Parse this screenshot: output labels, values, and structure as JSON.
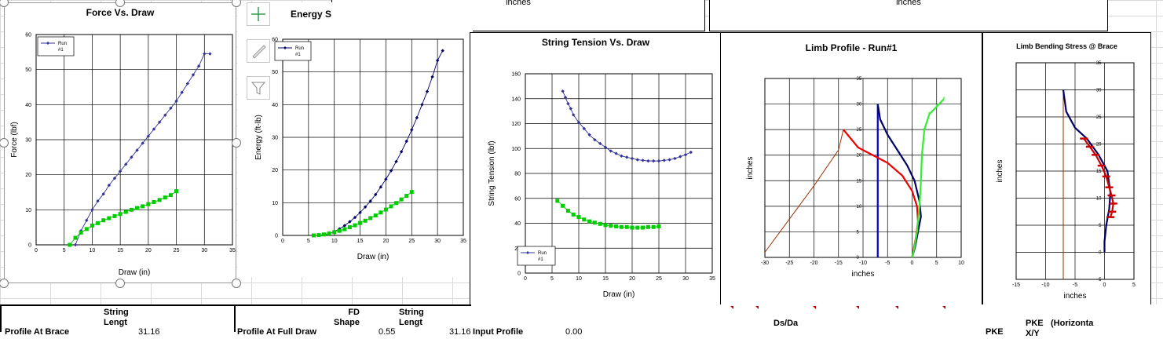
{
  "header_boxes": [
    {
      "text": "inches"
    },
    {
      "text": "inches"
    }
  ],
  "toolbar": {
    "add_icon": "plus-icon",
    "style_icon": "brush-icon",
    "filter_icon": "funnel-icon"
  },
  "bottom_cells": {
    "profile_at_brace": "Profile At Brace",
    "string_length_1": "String Lengt",
    "value_1": "31.16",
    "profile_at_full_draw": "Profile At Full Draw",
    "fd_shape": "FD Shape",
    "value_2": "0.55",
    "string_length_2": "String Lengt",
    "value_3": "31.16",
    "input_profile": "Input Profile",
    "value_4": "0.00",
    "ds_da": "Ds/Da",
    "pke": "PKE",
    "pke_xy": "PKE X/Y",
    "horizontal": "(Horizonta"
  },
  "chart_data": [
    {
      "type": "scatter",
      "title": "Force Vs. Draw",
      "xlabel": "Draw (in)",
      "ylabel": "Force (lbf)",
      "xlim": [
        0,
        35
      ],
      "ylim": [
        0,
        60
      ],
      "xticks": [
        0,
        5,
        10,
        15,
        20,
        25,
        30,
        35
      ],
      "yticks": [
        0,
        10,
        20,
        30,
        40,
        50,
        60
      ],
      "grid": true,
      "legend": "top-left",
      "series": [
        {
          "name": "Run #1",
          "color": "#333399",
          "marker": "diamond",
          "x": [
            7,
            8,
            9,
            10,
            11,
            12,
            13,
            14,
            15,
            16,
            17,
            18,
            19,
            20,
            21,
            22,
            23,
            24,
            25,
            26,
            27,
            28,
            29,
            30,
            31
          ],
          "y": [
            0,
            4,
            7,
            10,
            12.5,
            14.5,
            17,
            19,
            21,
            23,
            25,
            27,
            29,
            31,
            33,
            35,
            37,
            39,
            41,
            43.5,
            46,
            48.5,
            51,
            54.5,
            54.5
          ]
        },
        {
          "name": "",
          "color": "#00cc00",
          "marker": "square",
          "x": [
            6,
            7,
            8,
            9,
            10,
            11,
            12,
            13,
            14,
            15,
            16,
            17,
            18,
            19,
            20,
            21,
            22,
            23,
            24,
            25
          ],
          "y": [
            0,
            2,
            3.5,
            4.5,
            5.5,
            6.2,
            7,
            7.6,
            8.2,
            8.8,
            9.4,
            10,
            10.5,
            11,
            11.6,
            12.2,
            12.8,
            13.5,
            14.2,
            15.3
          ]
        }
      ]
    },
    {
      "type": "scatter",
      "title": "Energy S",
      "xlabel": "Draw (in)",
      "ylabel": "Energy (ft-lb)",
      "xlim": [
        0,
        35
      ],
      "ylim": [
        0,
        60
      ],
      "xticks": [
        0,
        5,
        10,
        15,
        20,
        25,
        30,
        35
      ],
      "yticks": [
        0,
        10,
        20,
        30,
        40,
        50,
        60
      ],
      "grid": true,
      "legend": "top-left",
      "series": [
        {
          "name": "Run #1",
          "color": "#000066",
          "marker": "diamond",
          "x": [
            7,
            8,
            9,
            10,
            11,
            12,
            13,
            14,
            15,
            16,
            17,
            18,
            19,
            20,
            21,
            22,
            23,
            24,
            25,
            26,
            27,
            28,
            29,
            30,
            31
          ],
          "y": [
            0,
            0.2,
            0.5,
            1.2,
            2,
            3,
            4.2,
            5.5,
            7,
            8.7,
            10.5,
            12.5,
            14.8,
            17.2,
            19.8,
            22.6,
            25.6,
            28.8,
            32.3,
            36,
            40,
            44,
            48.5,
            53.5,
            56.5
          ]
        },
        {
          "name": "",
          "color": "#00cc00",
          "marker": "square",
          "x": [
            6,
            7,
            8,
            9,
            10,
            11,
            12,
            13,
            14,
            15,
            16,
            17,
            18,
            19,
            20,
            21,
            22,
            23,
            24,
            25
          ],
          "y": [
            0,
            0.1,
            0.3,
            0.6,
            1,
            1.4,
            1.9,
            2.5,
            3.1,
            3.8,
            4.5,
            5.3,
            6.1,
            7,
            7.9,
            8.9,
            9.9,
            11,
            12.1,
            13.3
          ]
        }
      ]
    },
    {
      "type": "scatter",
      "title": "String Tension Vs. Draw",
      "xlabel": "Draw (in)",
      "ylabel": "String Tension (lbf)",
      "xlim": [
        0,
        35
      ],
      "ylim": [
        0,
        160
      ],
      "xticks": [
        0,
        5,
        10,
        15,
        20,
        25,
        30,
        35
      ],
      "yticks": [
        0,
        20,
        40,
        60,
        80,
        100,
        120,
        140,
        160
      ],
      "grid": true,
      "legend": "bottom-left",
      "series": [
        {
          "name": "Run #1",
          "color": "#333399",
          "marker": "diamond",
          "x": [
            7,
            7.5,
            8,
            8.5,
            9,
            10,
            11,
            12,
            13,
            14,
            15,
            16,
            17,
            18,
            19,
            20,
            21,
            22,
            23,
            24,
            25,
            26,
            27,
            28,
            29,
            30,
            31
          ],
          "y": [
            146,
            141,
            136,
            132,
            127,
            121,
            116,
            111,
            107,
            104,
            101,
            98,
            96,
            94,
            93,
            92,
            91,
            90.5,
            90,
            90,
            90,
            90.5,
            91,
            92,
            93.5,
            95,
            97
          ]
        },
        {
          "name": "",
          "color": "#00cc00",
          "marker": "square",
          "x": [
            6,
            7,
            8,
            9,
            10,
            11,
            12,
            13,
            14,
            15,
            16,
            17,
            18,
            19,
            20,
            21,
            22,
            23,
            24,
            25
          ],
          "y": [
            58,
            54,
            50,
            47,
            45,
            43,
            41.5,
            40.5,
            39.5,
            38.5,
            38,
            37.5,
            37,
            37,
            36.5,
            36.5,
            36.5,
            37,
            37,
            37.5
          ]
        }
      ]
    },
    {
      "type": "line",
      "title": "Limb Profile - Run#1",
      "xlabel": "inches",
      "ylabel": "inches",
      "xlim": [
        -30,
        10
      ],
      "ylim": [
        0,
        35
      ],
      "xticks": [
        -30,
        -25,
        -20,
        -15,
        -10,
        -5,
        0,
        5,
        10
      ],
      "yticks": [
        0,
        5,
        10,
        15,
        20,
        25,
        30,
        35
      ],
      "grid": true,
      "series": [
        {
          "color": "#993300",
          "x": [
            -30,
            -25,
            -20,
            -15,
            -14
          ],
          "y": [
            1,
            7.5,
            14,
            21,
            25
          ]
        },
        {
          "color": "#0000cc",
          "x": [
            -7,
            -7,
            -7,
            -7,
            -7
          ],
          "y": [
            0,
            7,
            15,
            22,
            30
          ]
        },
        {
          "color": "#000066",
          "x": [
            -7,
            -6.5,
            -5,
            -3,
            -1,
            0.5,
            1.5,
            1.8,
            1.2,
            0.6,
            0
          ],
          "y": [
            30,
            27,
            24,
            21,
            18,
            15,
            11,
            8,
            5,
            2,
            0
          ]
        },
        {
          "color": "#ee0000",
          "x": [
            -14,
            -11,
            -8,
            -5,
            -2,
            0,
            1,
            1.2,
            0.8,
            0.4,
            0
          ],
          "y": [
            25,
            21.5,
            20,
            18.5,
            16,
            13,
            10,
            7,
            4,
            2,
            0
          ]
        },
        {
          "color": "#33ee33",
          "x": [
            6.5,
            5,
            3.5,
            2.5,
            2,
            1.8,
            1.5,
            1,
            0.5,
            0
          ],
          "y": [
            31,
            29.5,
            28,
            25,
            20,
            15,
            10,
            5,
            2,
            0
          ]
        }
      ]
    },
    {
      "type": "line",
      "title": "Limb Bending Stress @ Brace",
      "xlabel": "inches",
      "ylabel": "inches",
      "xlim": [
        -15,
        5
      ],
      "ylim": [
        -5,
        35
      ],
      "xticks": [
        -15,
        -10,
        -5,
        0,
        5
      ],
      "yticks": [
        -5,
        0,
        5,
        10,
        15,
        20,
        25,
        30,
        35
      ],
      "grid": true,
      "series": [
        {
          "color": "#993300",
          "x": [
            -7,
            -7,
            -7,
            -7,
            -7
          ],
          "y": [
            -5,
            5,
            15,
            25,
            30
          ]
        },
        {
          "color": "#000066",
          "x": [
            -7,
            -6.5,
            -5,
            -3,
            -1,
            0.5,
            1,
            0.8,
            0.3,
            0,
            0
          ],
          "y": [
            30,
            26,
            23,
            21,
            18,
            15,
            11,
            8,
            5,
            2,
            0
          ]
        },
        {
          "color": "#cc0000",
          "x": [
            -3.5,
            -2.5,
            -1.5,
            -0.5,
            0.3,
            0.8,
            1.2,
            1.5,
            1.3,
            1
          ],
          "y": [
            21,
            19.5,
            18,
            16,
            14,
            12,
            10.5,
            9,
            7.5,
            6.5
          ]
        }
      ]
    }
  ]
}
